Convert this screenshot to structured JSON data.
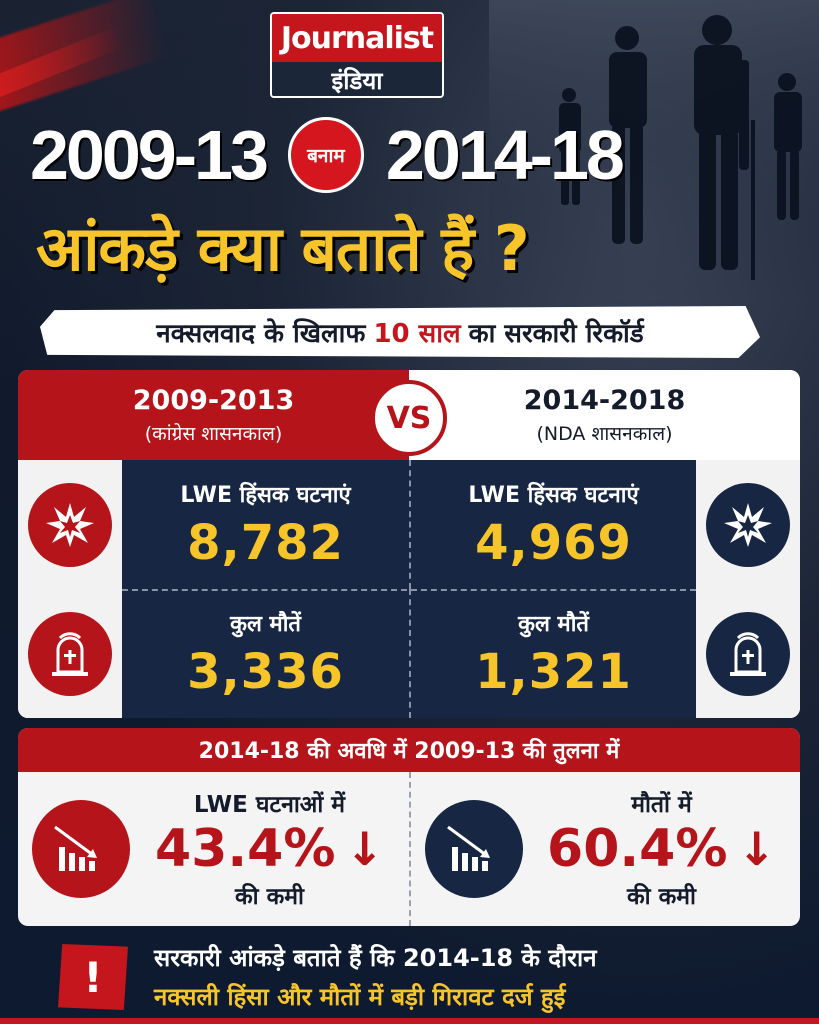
{
  "brand": {
    "name": "Journalist",
    "sub": "इंडिया"
  },
  "title": {
    "left_year": "2009-13",
    "versus": "बनाम",
    "right_year": "2014-18",
    "headline": "आंकड़े क्या बताते हैं ?"
  },
  "subtitle": {
    "before": "नक्सलवाद के खिलाफ",
    "highlight": "10 साल",
    "after": "का सरकारी रिकॉर्ड"
  },
  "comparison": {
    "left": {
      "period": "2009-2013",
      "label": "(कांग्रेस शासनकाल)"
    },
    "vs": "VS",
    "right": {
      "period": "2014-2018",
      "label": "(NDA शासनकाल)"
    },
    "incidents_label": "LWE हिंसक घटनाएं",
    "deaths_label": "कुल मौतें",
    "left_incidents": "8,782",
    "right_incidents": "4,969",
    "left_deaths": "3,336",
    "right_deaths": "1,321"
  },
  "reduction": {
    "heading": "2014-18 की अवधि में 2009-13 की तुलना में",
    "incidents": {
      "label": "LWE घटनाओं में",
      "pct": "43.4%",
      "suffix": "की कमी"
    },
    "deaths": {
      "label": "मौतों में",
      "pct": "60.4%",
      "suffix": "की कमी"
    }
  },
  "footer": {
    "alert_icon": "!",
    "line1": "सरकारी आंकड़े बताते हैं कि 2014-18 के दौरान",
    "line2": "नक्सली हिंसा और मौतों में बड़ी गिरावट दर्ज हुई"
  },
  "colors": {
    "red": "#b5141a",
    "navy": "#172643",
    "yellow": "#f7c52a"
  }
}
